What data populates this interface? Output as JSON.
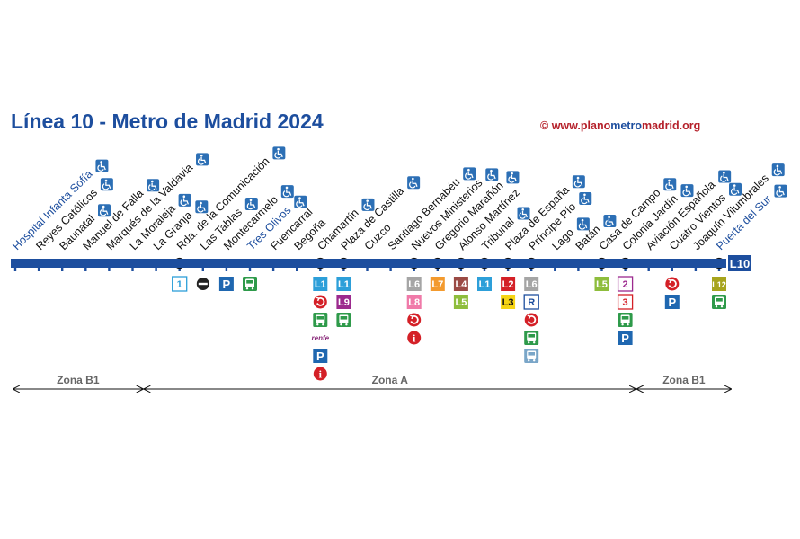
{
  "title": "Línea 10 - Metro de Madrid 2024",
  "copyright": {
    "symbol": "©",
    "www": "www.",
    "plano": "plano",
    "metro": "metro",
    "madrid": "madrid",
    "tld": ".org"
  },
  "line": {
    "code": "L10",
    "color": "#1d4e9e"
  },
  "stations": [
    {
      "name": "Hospital Infanta Sofía",
      "terminal": true,
      "accessible": true,
      "interchange": false
    },
    {
      "name": "Reyes Católicos",
      "accessible": true,
      "interchange": false
    },
    {
      "name": "Baunatal",
      "accessible": true,
      "interchange": false
    },
    {
      "name": "Manuel de Falla",
      "accessible": true,
      "interchange": false
    },
    {
      "name": "Marqués de la Valdavia",
      "accessible": true,
      "interchange": false
    },
    {
      "name": "La Moraleja",
      "accessible": true,
      "interchange": false
    },
    {
      "name": "La Granja",
      "accessible": true,
      "interchange": false
    },
    {
      "name": "Rda. de la Comunicación",
      "accessible": true,
      "interchange": true
    },
    {
      "name": "Las Tablas",
      "accessible": true,
      "interchange": false
    },
    {
      "name": "Montecarmelo",
      "accessible": true,
      "interchange": false
    },
    {
      "name": "Tres Olivos",
      "terminal": true,
      "accessible": true,
      "interchange": false
    },
    {
      "name": "Fuencarral",
      "accessible": false,
      "interchange": false
    },
    {
      "name": "Begoña",
      "accessible": false,
      "interchange": false
    },
    {
      "name": "Chamartín",
      "accessible": true,
      "interchange": true
    },
    {
      "name": "Plaza de Castilla",
      "accessible": true,
      "interchange": true
    },
    {
      "name": "Cuzco",
      "accessible": false,
      "interchange": false
    },
    {
      "name": "Santiago Bernabéu",
      "accessible": true,
      "interchange": false
    },
    {
      "name": "Nuevos Ministerios",
      "accessible": true,
      "interchange": true
    },
    {
      "name": "Gregorio Marañón",
      "accessible": true,
      "interchange": true
    },
    {
      "name": "Alonso Martínez",
      "accessible": false,
      "interchange": true
    },
    {
      "name": "Tribunal",
      "accessible": true,
      "interchange": true
    },
    {
      "name": "Plaza de España",
      "accessible": true,
      "interchange": true
    },
    {
      "name": "Príncipe Pío",
      "accessible": true,
      "interchange": true
    },
    {
      "name": "Lago",
      "accessible": true,
      "interchange": false
    },
    {
      "name": "Batán",
      "accessible": true,
      "interchange": false
    },
    {
      "name": "Casa de Campo",
      "accessible": true,
      "interchange": true
    },
    {
      "name": "Colonia Jardín",
      "accessible": true,
      "interchange": true
    },
    {
      "name": "Aviación Española",
      "accessible": true,
      "interchange": false
    },
    {
      "name": "Cuatro Vientos",
      "accessible": true,
      "interchange": false
    },
    {
      "name": "Joaquín Vilumbrales",
      "accessible": true,
      "interchange": false
    },
    {
      "name": "Puerta del Sur",
      "terminal": true,
      "accessible": true,
      "interchange": true
    }
  ],
  "connections": [
    {
      "station": "Rda. de la Comunicación",
      "items": [
        {
          "kind": "line",
          "text": "1",
          "bg": "#ffffff",
          "fg": "#2d9fd9",
          "border": "#2d9fd9"
        }
      ]
    },
    {
      "station": "Las Tablas",
      "items": [
        {
          "kind": "icon",
          "icon": "metro-ligero-icon"
        }
      ]
    },
    {
      "station": "Montecarmelo",
      "items": [
        {
          "kind": "icon",
          "icon": "parking-icon"
        }
      ]
    },
    {
      "station": "Tres Olivos",
      "items": [
        {
          "kind": "icon",
          "icon": "bus-icon"
        }
      ]
    },
    {
      "station": "Chamartín",
      "items": [
        {
          "kind": "line",
          "text": "L1",
          "bg": "#2d9fd9",
          "fg": "#ffffff"
        },
        {
          "kind": "icon",
          "icon": "cercanias-icon"
        },
        {
          "kind": "icon",
          "icon": "bus-icon"
        },
        {
          "kind": "text",
          "text": "renfe",
          "icon": "renfe-icon"
        },
        {
          "kind": "icon",
          "icon": "parking-icon"
        },
        {
          "kind": "icon",
          "icon": "info-icon"
        }
      ]
    },
    {
      "station": "Plaza de Castilla",
      "items": [
        {
          "kind": "line",
          "text": "L1",
          "bg": "#2d9fd9",
          "fg": "#ffffff"
        },
        {
          "kind": "line",
          "text": "L9",
          "bg": "#9c2a8e",
          "fg": "#ffffff"
        },
        {
          "kind": "icon",
          "icon": "bus-icon"
        }
      ]
    },
    {
      "station": "Nuevos Ministerios",
      "items": [
        {
          "kind": "line",
          "text": "L6",
          "bg": "#a5a5a5",
          "fg": "#ffffff"
        },
        {
          "kind": "line",
          "text": "L8",
          "bg": "#f07aa9",
          "fg": "#ffffff"
        },
        {
          "kind": "icon",
          "icon": "cercanias-icon"
        },
        {
          "kind": "icon",
          "icon": "info-icon"
        }
      ]
    },
    {
      "station": "Gregorio Marañón",
      "items": [
        {
          "kind": "line",
          "text": "L7",
          "bg": "#f39a2e",
          "fg": "#ffffff"
        }
      ]
    },
    {
      "station": "Alonso Martínez",
      "items": [
        {
          "kind": "line",
          "text": "L4",
          "bg": "#9a4a45",
          "fg": "#ffffff"
        },
        {
          "kind": "line",
          "text": "L5",
          "bg": "#8ebd3c",
          "fg": "#ffffff"
        }
      ]
    },
    {
      "station": "Tribunal",
      "items": [
        {
          "kind": "line",
          "text": "L1",
          "bg": "#2d9fd9",
          "fg": "#ffffff"
        }
      ]
    },
    {
      "station": "Plaza de España",
      "items": [
        {
          "kind": "line",
          "text": "L2",
          "bg": "#d42027",
          "fg": "#ffffff"
        },
        {
          "kind": "line",
          "text": "L3",
          "bg": "#f6d414",
          "fg": "#111111"
        }
      ]
    },
    {
      "station": "Príncipe Pío",
      "items": [
        {
          "kind": "line",
          "text": "L6",
          "bg": "#a5a5a5",
          "fg": "#ffffff"
        },
        {
          "kind": "line",
          "text": "R",
          "bg": "#ffffff",
          "fg": "#1d4e9e",
          "border": "#1d4e9e"
        },
        {
          "kind": "icon",
          "icon": "cercanias-icon"
        },
        {
          "kind": "icon",
          "icon": "bus-icon"
        },
        {
          "kind": "icon",
          "icon": "intercity-bus-icon"
        }
      ]
    },
    {
      "station": "Casa de Campo",
      "items": [
        {
          "kind": "line",
          "text": "L5",
          "bg": "#8ebd3c",
          "fg": "#ffffff"
        }
      ]
    },
    {
      "station": "Colonia Jardín",
      "items": [
        {
          "kind": "line",
          "text": "2",
          "bg": "#ffffff",
          "fg": "#9c2a8e",
          "border": "#9c2a8e"
        },
        {
          "kind": "line",
          "text": "3",
          "bg": "#ffffff",
          "fg": "#d42027",
          "border": "#d42027"
        },
        {
          "kind": "icon",
          "icon": "bus-icon"
        },
        {
          "kind": "icon",
          "icon": "parking-icon"
        }
      ]
    },
    {
      "station": "Cuatro Vientos",
      "items": [
        {
          "kind": "icon",
          "icon": "cercanias-icon"
        },
        {
          "kind": "icon",
          "icon": "parking-icon"
        }
      ]
    },
    {
      "station": "Puerta del Sur",
      "items": [
        {
          "kind": "line",
          "text": "L12",
          "bg": "#a7a41d",
          "fg": "#ffffff"
        },
        {
          "kind": "icon",
          "icon": "bus-icon"
        }
      ]
    }
  ],
  "zones": [
    {
      "label": "Zona B1",
      "from_station": "Hospital Infanta Sofía",
      "to_station": "Rda. de la Comunicación"
    },
    {
      "label": "Zona A",
      "from_station": "Rda. de la Comunicación",
      "to_station": "Cuatro Vientos"
    },
    {
      "label": "Zona B1",
      "from_station": "Cuatro Vientos",
      "to_station": "Puerta del Sur"
    }
  ],
  "colors": {
    "line_blue": "#1d4e9e",
    "access_blue": "#2c6fb5",
    "cercanias_red": "#d42027",
    "bus_green": "#2e9a4a",
    "parking_blue": "#1f67b0",
    "zone_grey": "#666666"
  }
}
